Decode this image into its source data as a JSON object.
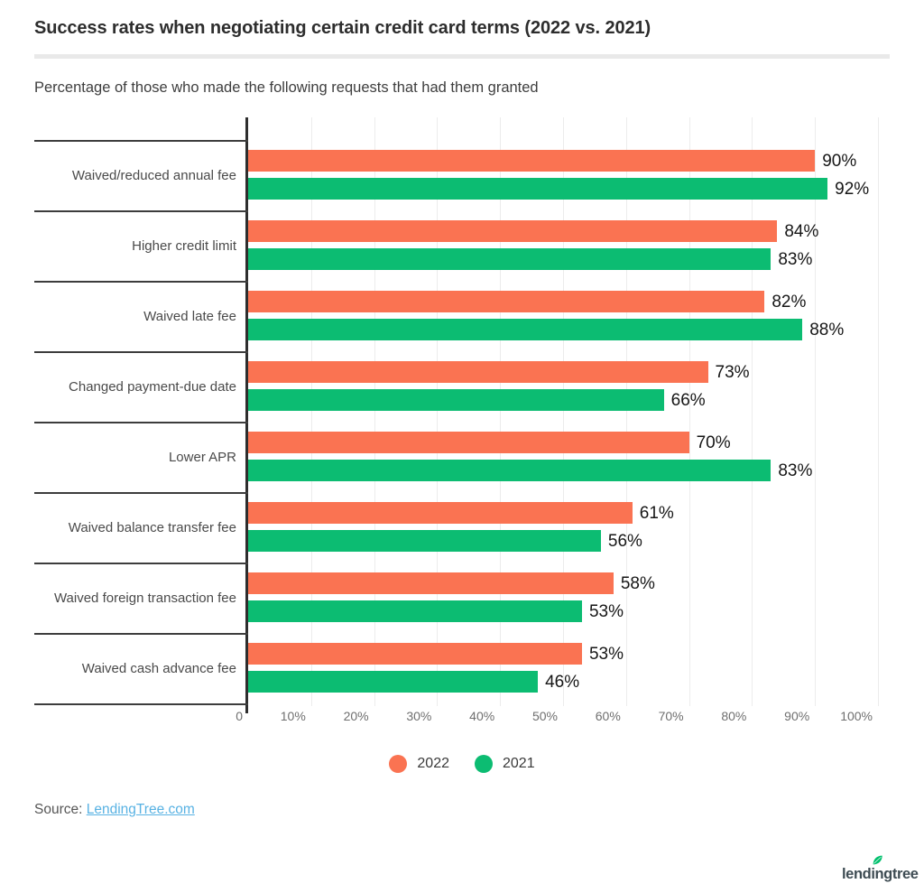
{
  "header": {
    "title": "Success rates when negotiating certain credit card terms (2022 vs. 2021)",
    "subtitle": "Percentage of those who made the following requests that had them granted"
  },
  "chart_data": {
    "type": "bar",
    "orientation": "horizontal",
    "title": "Success rates when negotiating certain credit card terms (2022 vs. 2021)",
    "subtitle": "Percentage of those who made the following requests that had them granted",
    "categories": [
      "Waived/reduced annual fee",
      "Higher credit limit",
      "Waived late fee",
      "Changed payment-due date",
      "Lower APR",
      "Waived balance transfer fee",
      "Waived foreign transaction fee",
      "Waived cash advance fee"
    ],
    "series": [
      {
        "name": "2022",
        "color": "#fa7352",
        "values": [
          90,
          84,
          82,
          73,
          70,
          61,
          58,
          53
        ]
      },
      {
        "name": "2021",
        "color": "#0cbc72",
        "values": [
          92,
          83,
          88,
          66,
          83,
          56,
          53,
          46
        ]
      }
    ],
    "value_suffix": "%",
    "x_ticks": [
      "0",
      "10%",
      "20%",
      "30%",
      "40%",
      "50%",
      "60%",
      "70%",
      "80%",
      "90%",
      "100%"
    ],
    "xlim": [
      0,
      100
    ],
    "grid": true,
    "legend_position": "bottom"
  },
  "legend": {
    "items": [
      {
        "label": "2022",
        "color": "#fa7352"
      },
      {
        "label": "2021",
        "color": "#0cbc72"
      }
    ]
  },
  "source": {
    "prefix": "Source:",
    "link_text": "LendingTree.com"
  },
  "logo": {
    "text": "lendingtree",
    "leaf_color": "#00c06d"
  },
  "colors": {
    "bar_2022": "#fa7352",
    "bar_2021": "#0cbc72",
    "axis": "#2e2e2e",
    "gridline": "#ececec",
    "link": "#58b2e3"
  }
}
